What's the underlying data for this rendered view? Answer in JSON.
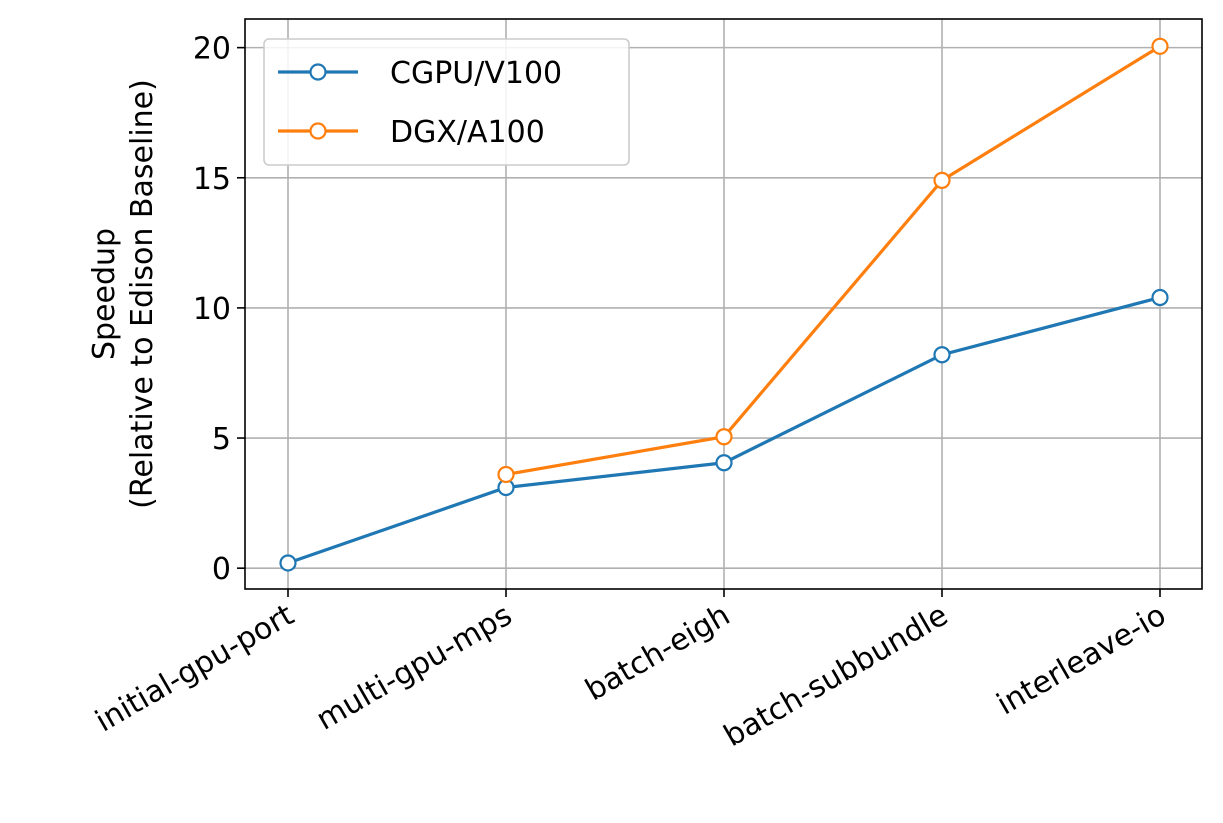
{
  "chart_data": {
    "type": "line",
    "categories": [
      "initial-gpu-port",
      "multi-gpu-mps",
      "batch-eigh",
      "batch-subbundle",
      "interleave-io"
    ],
    "series": [
      {
        "name": "CGPU/V100",
        "color": "#1f77b4",
        "values": [
          0.2,
          3.1,
          4.05,
          8.2,
          10.4
        ]
      },
      {
        "name": "DGX/A100",
        "color": "#ff7f0e",
        "values": [
          null,
          3.6,
          5.05,
          14.9,
          20.05
        ]
      }
    ],
    "ylabel_line1": "Speedup",
    "ylabel_line2": "(Relative to Edison Baseline)",
    "ylim": [
      -0.8,
      21.1
    ],
    "yticks": [
      0,
      5,
      10,
      15,
      20
    ],
    "grid": true,
    "legend_position": "top-left"
  }
}
